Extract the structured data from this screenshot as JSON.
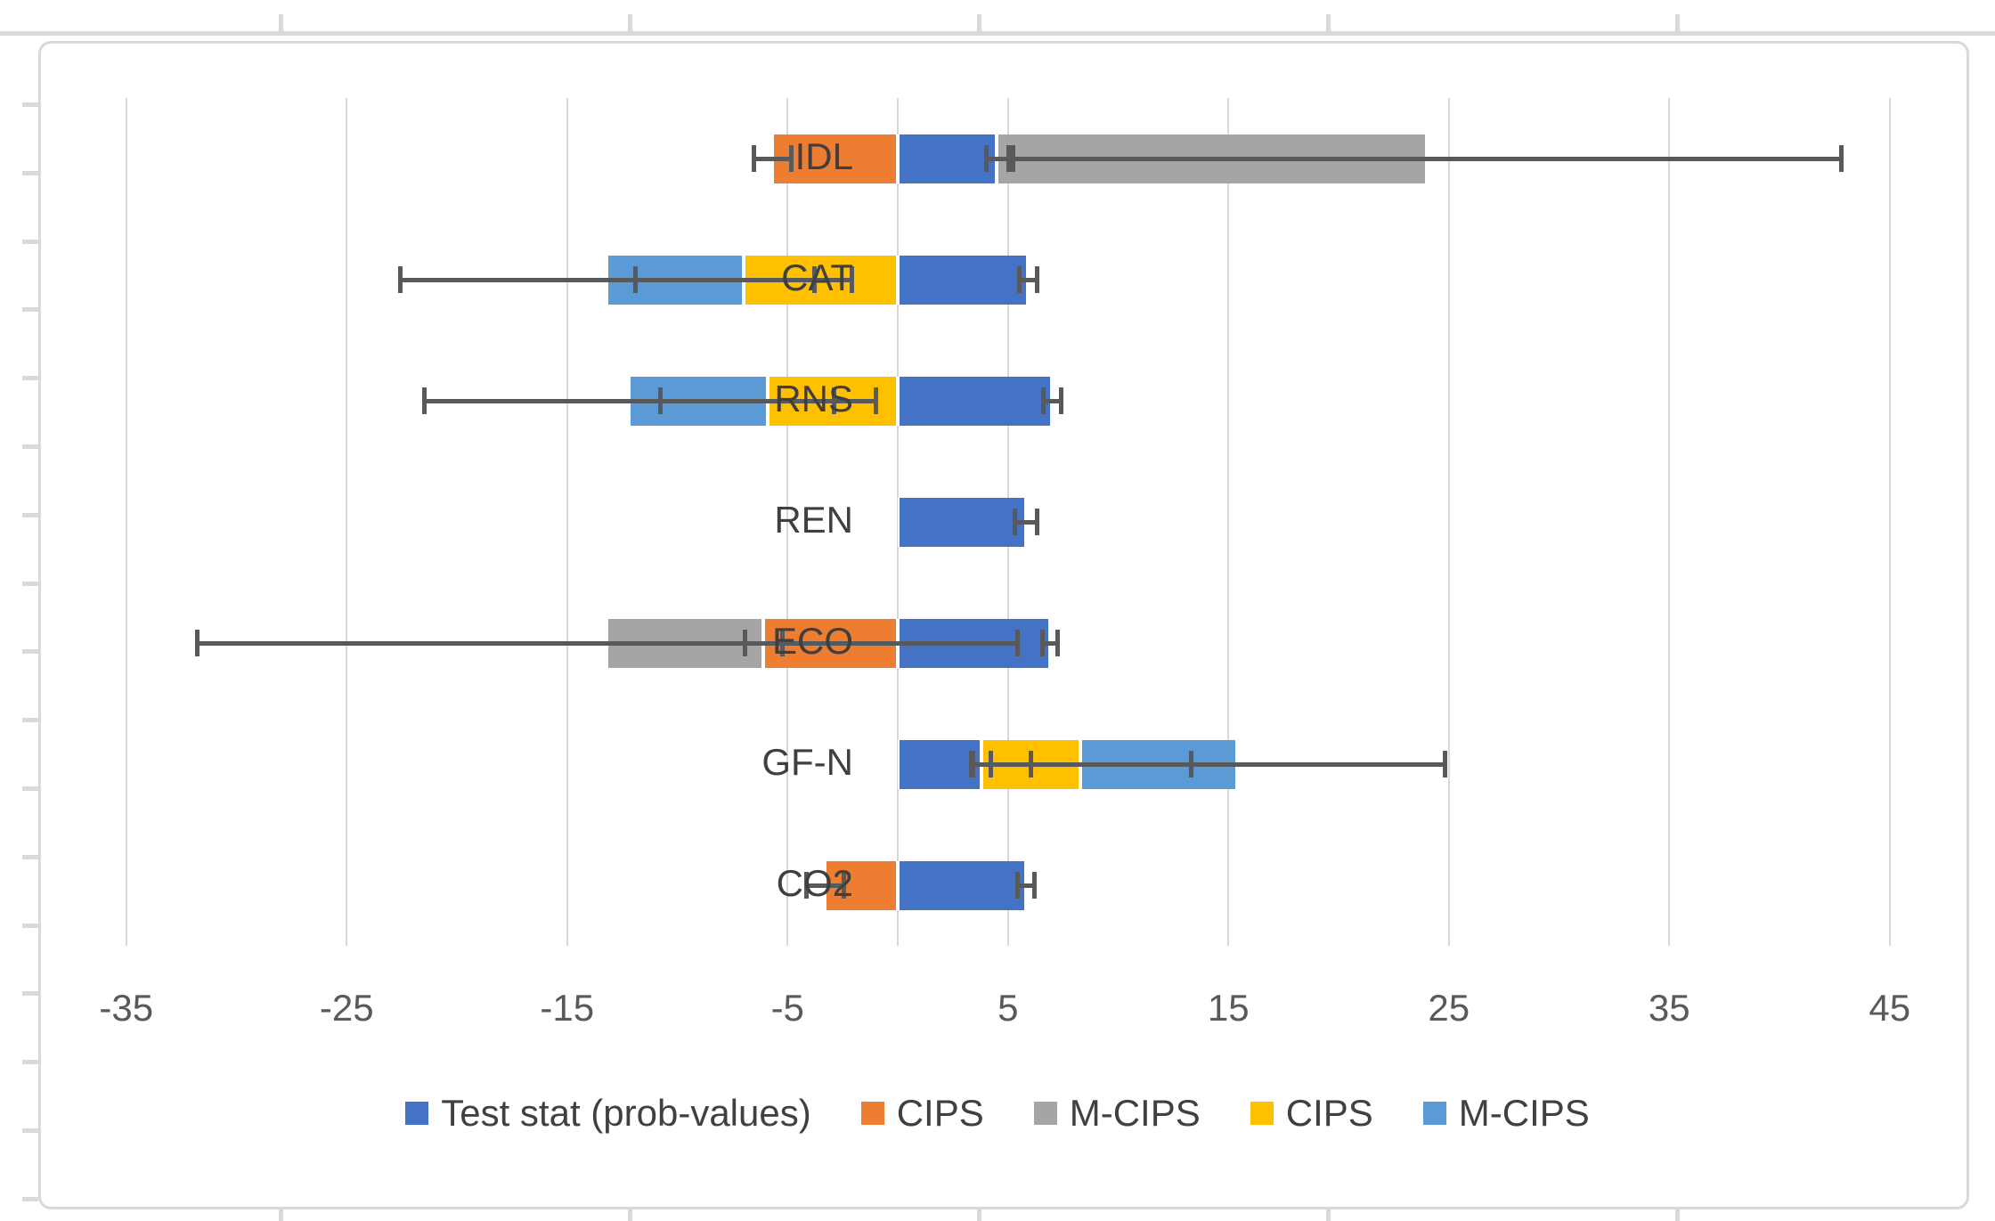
{
  "chart_data": {
    "type": "bar",
    "orientation": "horizontal",
    "stacked": true,
    "title": "",
    "xlabel": "",
    "ylabel": "",
    "grid": true,
    "legend_position": "bottom",
    "x_axis": {
      "min": -40,
      "max": 48,
      "tick_step": 10,
      "tick_values": [
        -35,
        -25,
        -15,
        -5,
        5,
        15,
        25,
        35,
        45
      ],
      "tick_labels": [
        "-35",
        "-25",
        "-15",
        "-5",
        "5",
        "15",
        "25",
        "35",
        "45"
      ],
      "zero_line": true
    },
    "categories": [
      "IDL",
      "CAT",
      "RNS",
      "REN",
      "ECO",
      "GF-N",
      "CO2"
    ],
    "series": [
      {
        "name": "Test stat (prob-values)",
        "color": "#4472C4",
        "values": [
          4.5,
          5.9,
          7.0,
          5.8,
          6.9,
          3.8,
          5.8
        ],
        "errors": [
          0.5,
          0.4,
          0.4,
          0.5,
          0.35,
          0.4,
          0.4
        ]
      },
      {
        "name": "CIPS",
        "color": "#ED7D31",
        "values": [
          -5.7,
          0,
          0,
          0,
          -6.1,
          0,
          -3.3
        ],
        "errors": [
          0.85,
          0,
          0,
          0,
          0.85,
          0,
          0.85
        ]
      },
      {
        "name": "M-CIPS",
        "color": "#A5A5A5",
        "values": [
          19.5,
          0,
          0,
          0,
          -7.1,
          0,
          0
        ],
        "errors": [
          18.8,
          0,
          0,
          0,
          18.6,
          0,
          0
        ]
      },
      {
        "name": "CIPS",
        "color": "#FFC000",
        "values": [
          0,
          -7.0,
          -5.9,
          0,
          0,
          4.5,
          0
        ],
        "errors": [
          0,
          4.9,
          4.9,
          0,
          0,
          5.0,
          0
        ]
      },
      {
        "name": "M-CIPS",
        "color": "#5B9BD5",
        "values": [
          0,
          -6.2,
          -6.3,
          0,
          0,
          7.1,
          0
        ],
        "errors": [
          0,
          9.4,
          9.3,
          0,
          0,
          9.4,
          0
        ]
      }
    ],
    "legend": [
      {
        "label": "Test stat (prob-values)",
        "color": "#4472C4"
      },
      {
        "label": "CIPS",
        "color": "#ED7D31"
      },
      {
        "label": "M-CIPS",
        "color": "#A5A5A5"
      },
      {
        "label": "CIPS",
        "color": "#FFC000"
      },
      {
        "label": "M-CIPS",
        "color": "#5B9BD5"
      }
    ]
  },
  "colors": {
    "gridline": "#D9D9D9",
    "chart_border": "#D9D9D9",
    "error_bar": "#58595B",
    "axis_text": "#595959",
    "category_text": "#3F3F3F",
    "background": "#FFFFFF"
  }
}
